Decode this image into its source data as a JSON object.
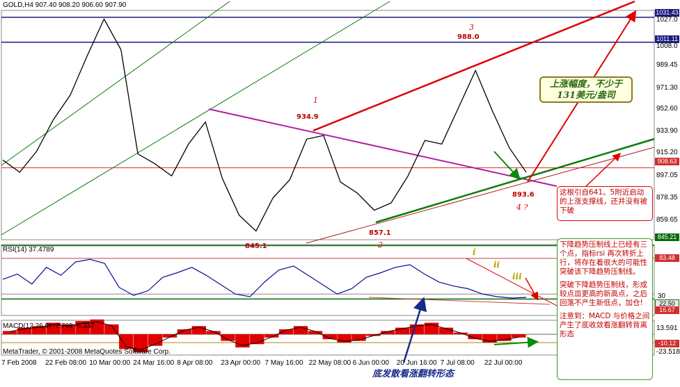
{
  "header": {
    "symbol_line": "GOLD,H4  907.40 908.20 906.60 907.90",
    "rsi_label": "RSI(14) 37.4789",
    "macd_label": "MACD(12,26,9) -7.769 -6.337",
    "copyright": "MetaTrader, © 2001-2008 MetaQuotes Software Corp."
  },
  "colors": {
    "price": "#000000",
    "channel_green": "#0a7a0a",
    "support_red": "#aa2020",
    "resistance_magenta": "#b020a0",
    "rsi_line": "#0a0a9a",
    "macd_hist": "#e00000",
    "annotation_red": "#e00000",
    "annotation_text": "#c00000"
  },
  "chart_data": {
    "type": "line",
    "x_ticks": [
      "7 Feb 2008",
      "22 Feb 08:00",
      "10 Mar 00:00",
      "24 Mar 16:00",
      "8 Apr 08:00",
      "23 Apr 00:00",
      "7 May 16:00",
      "22 May 08:00",
      "6 Jun 00:00",
      "20 Jun 16:00",
      "7 Jul 08:00",
      "22 Jul 00:00"
    ],
    "price_axis": {
      "range": [
        850,
        1037
      ],
      "ticks": [
        "1027.0",
        "1008.0",
        "989.45",
        "971.30",
        "952.60",
        "933.90",
        "915.20",
        "897.05",
        "878.35",
        "859.65"
      ],
      "levels": [
        {
          "label": "1031.43",
          "value": 1031.43
        },
        {
          "label": "1011.11",
          "value": 1011.11
        },
        {
          "label": "908.63",
          "value": 908.63
        },
        {
          "label": "845.21",
          "value": 845.21
        }
      ]
    },
    "price_series": {
      "name": "GOLD,H4",
      "x": [
        "7 Feb 2008",
        "14 Feb 2008",
        "22 Feb 2008",
        "29 Feb 2008",
        "5 Mar 2008",
        "10 Mar 2008",
        "17 Mar 2008",
        "20 Mar 2008",
        "24 Mar 2008",
        "1 Apr 2008",
        "8 Apr 2008",
        "15 Apr 2008",
        "22 Apr 2008",
        "28 Apr 2008",
        "2 May 2008",
        "7 May 2008",
        "14 May 2008",
        "19 May 2008",
        "22 May 2008",
        "28 May 2008",
        "3 Jun 2008",
        "6 Jun 2008",
        "12 Jun 2008",
        "17 Jun 2008",
        "20 Jun 2008",
        "27 Jun 2008",
        "2 Jul 2008",
        "8 Jul 2008",
        "15 Jul 2008",
        "18 Jul 2008",
        "22 Jul 2008",
        "25 Jul 2008"
      ],
      "y": [
        915,
        905,
        922,
        948,
        968,
        1000,
        1030,
        1005,
        920,
        912,
        902,
        928,
        946,
        900,
        870,
        857,
        884,
        899,
        932,
        935,
        897,
        888,
        874,
        880,
        902,
        931,
        928,
        958,
        988,
        955,
        925,
        905
      ]
    },
    "price_annotations": [
      {
        "wave": "1",
        "price": "934.9"
      },
      {
        "wave": "2",
        "price": "857.1"
      },
      {
        "wave": "3",
        "price": "988.0"
      },
      {
        "wave": "4 ?",
        "price": "893.6"
      },
      {
        "wave": "",
        "price": "845.1"
      }
    ],
    "rsi": {
      "name": "RSI(14)",
      "current": 37.4789,
      "ticks": [
        "83.48",
        "30"
      ],
      "badges": [
        "83.48",
        "22.50",
        "16.67"
      ],
      "values": [
        52,
        60,
        45,
        70,
        58,
        78,
        82,
        76,
        40,
        28,
        35,
        55,
        62,
        70,
        58,
        44,
        30,
        26,
        48,
        66,
        72,
        58,
        44,
        30,
        38,
        55,
        62,
        70,
        74,
        60,
        48,
        42,
        38,
        30,
        26,
        24,
        25
      ]
    },
    "macd": {
      "name": "MACD(12,26,9)",
      "main": -7.769,
      "signal": -6.337,
      "ticks": [
        "13.591",
        "-23.518"
      ],
      "badges": [
        "-10.12"
      ],
      "histogram": [
        4,
        8,
        10,
        14,
        12,
        16,
        18,
        12,
        -18,
        -22,
        -14,
        -4,
        6,
        10,
        4,
        -8,
        -16,
        -12,
        -4,
        6,
        10,
        4,
        -6,
        -10,
        -8,
        -2,
        4,
        8,
        12,
        14,
        8,
        2,
        -6,
        -10,
        -8,
        -4
      ]
    },
    "grid": false,
    "legend": "top-left"
  },
  "annotations": {
    "wave_labels": [
      "1",
      "2",
      "3",
      "4 ?"
    ],
    "roman_labels": [
      "i",
      "ii",
      "iii"
    ],
    "price_labels": [
      "934.9",
      "857.1",
      "988.0",
      "893.6",
      "845.1"
    ],
    "box_target": "上涨幅度，不少于\n131美元/盎司",
    "box_support": "这根引自641。5附近启动的上涨支撑线，还并没有被下破",
    "box_main_p1": "下降趋势压制线上已经有三个点，指标rsi 再次转折上行，将存在着很大的可能性突破该下降趋势压制线。",
    "box_main_p2": "突破下降趋势压制线，形成较点皿更高的新高点，之后回落不产生新低点，加仓!",
    "box_main_p3": "注意到：MACD 与价格之间产生了底收敛看涨翻转背离形态",
    "bottom_caption": "底发散看涨翻转形态"
  }
}
